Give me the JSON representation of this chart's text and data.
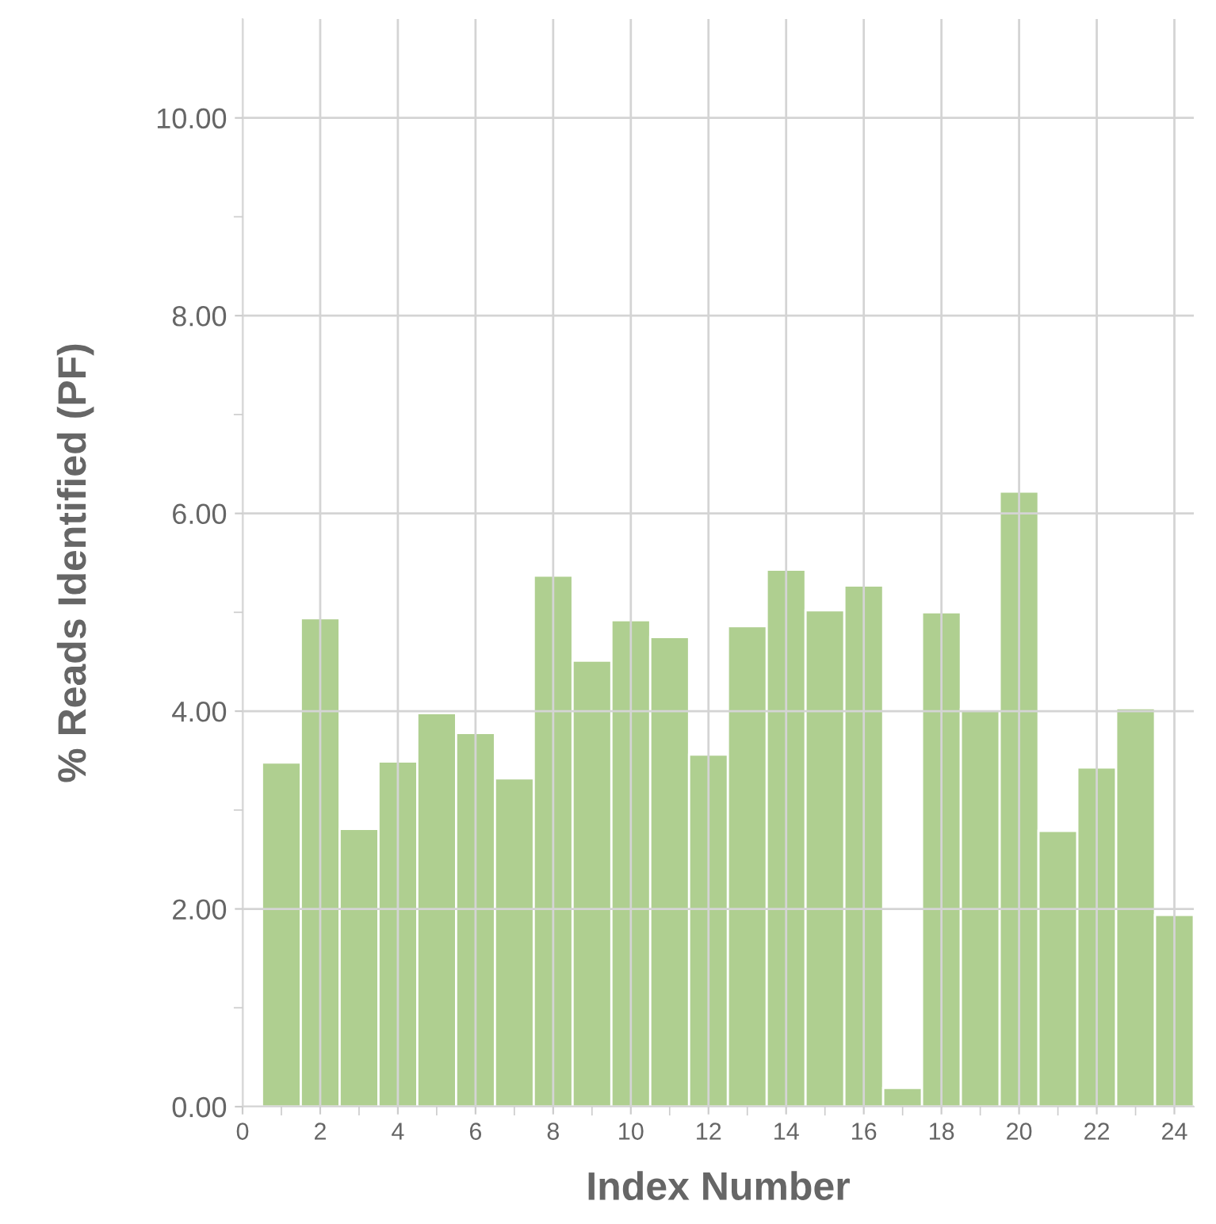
{
  "chart_data": {
    "type": "bar",
    "xlabel": "Index Number",
    "ylabel": "% Reads Identified (PF)",
    "x": [
      1,
      2,
      3,
      4,
      5,
      6,
      7,
      8,
      9,
      10,
      11,
      12,
      13,
      14,
      15,
      16,
      17,
      18,
      19,
      20,
      21,
      22,
      23,
      24
    ],
    "values": [
      3.48,
      4.94,
      2.81,
      3.49,
      3.98,
      3.78,
      3.32,
      5.37,
      4.51,
      4.92,
      4.75,
      3.56,
      4.86,
      5.43,
      5.02,
      5.27,
      0.19,
      5.0,
      4.02,
      6.22,
      2.79,
      3.43,
      4.03,
      1.94
    ],
    "color": "#abcd8b",
    "xlim": [
      0,
      24.5
    ],
    "ylim": [
      0,
      11
    ],
    "xticks": [
      0,
      {
        "value": 1,
        "label": null
      },
      2,
      {
        "value": 3,
        "label": null
      },
      4,
      {
        "value": 5,
        "label": null
      },
      6,
      {
        "value": 7,
        "label": null
      },
      8,
      {
        "value": 9,
        "label": null
      },
      10,
      {
        "value": 11,
        "label": null
      },
      12,
      {
        "value": 13,
        "label": null
      },
      14,
      {
        "value": 15,
        "label": null
      },
      16,
      {
        "value": 17,
        "label": null
      },
      18,
      {
        "value": 19,
        "label": null
      },
      20,
      {
        "value": 21,
        "label": null
      },
      22,
      {
        "value": 23,
        "label": null
      },
      24
    ],
    "yticks": [
      {
        "value": 0,
        "label": "0.00"
      },
      {
        "value": 1,
        "label": null
      },
      {
        "value": 2,
        "label": "2.00"
      },
      {
        "value": 3,
        "label": null
      },
      {
        "value": 4,
        "label": "4.00"
      },
      {
        "value": 5,
        "label": null
      },
      {
        "value": 6,
        "label": "6.00"
      },
      {
        "value": 7,
        "label": null
      },
      {
        "value": 8,
        "label": "8.00"
      },
      {
        "value": 9,
        "label": null
      },
      {
        "value": 10,
        "label": "10.00"
      }
    ],
    "grid": true
  }
}
